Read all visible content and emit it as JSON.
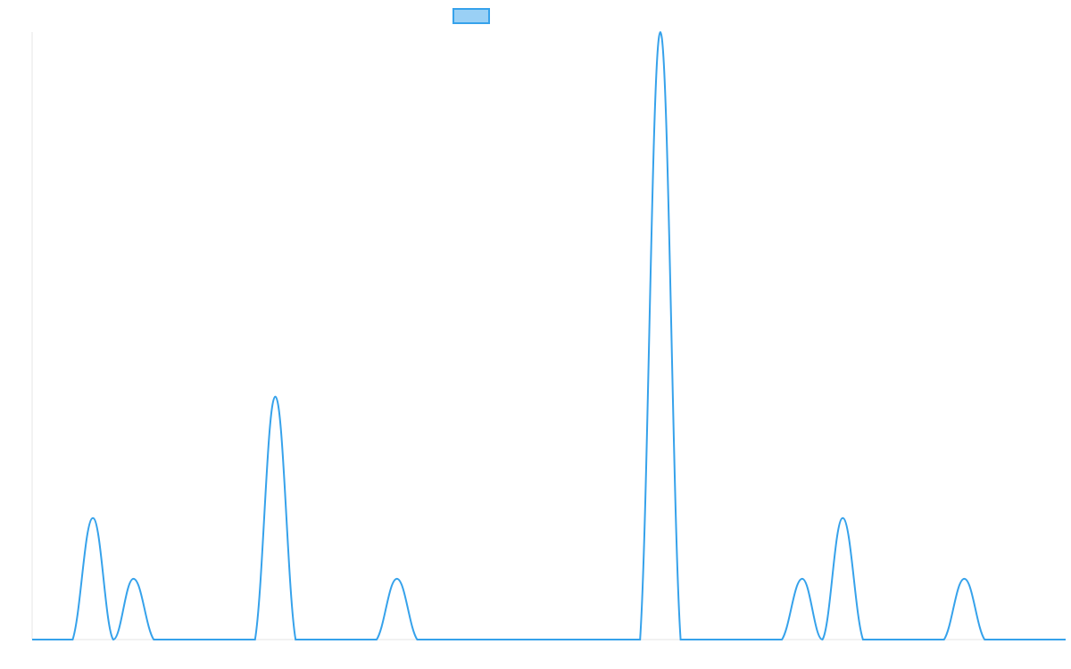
{
  "chart_data": {
    "type": "line",
    "title": "",
    "xlabel": "",
    "ylabel": "",
    "grid": false,
    "legend": "top-center",
    "x": [
      0,
      1,
      2,
      3,
      4,
      5,
      6,
      7,
      8,
      9,
      10,
      11,
      12,
      13,
      14,
      15,
      16,
      17,
      18,
      19,
      20,
      21,
      22,
      23,
      24,
      25,
      26,
      27,
      28,
      29,
      30,
      31,
      32,
      33,
      34,
      35,
      36,
      37,
      38,
      39,
      40,
      41,
      42,
      43,
      44,
      45,
      46,
      47,
      48,
      49,
      50,
      51
    ],
    "xlim": [
      0,
      51
    ],
    "ylim": [
      0,
      10
    ],
    "series": [
      {
        "name": "",
        "color": "#36a2eb",
        "fill": "#9ad0f5",
        "values": [
          0,
          0,
          0,
          2,
          0,
          1,
          0,
          0,
          0,
          0,
          0,
          0,
          4,
          0,
          0,
          0,
          0,
          0,
          1,
          0,
          0,
          0,
          0,
          0,
          0,
          0,
          0,
          0,
          0,
          0,
          0,
          10,
          0,
          0,
          0,
          0,
          0,
          0,
          1,
          0,
          2,
          0,
          0,
          0,
          0,
          0,
          1,
          0,
          0,
          0,
          0,
          0
        ]
      }
    ]
  }
}
